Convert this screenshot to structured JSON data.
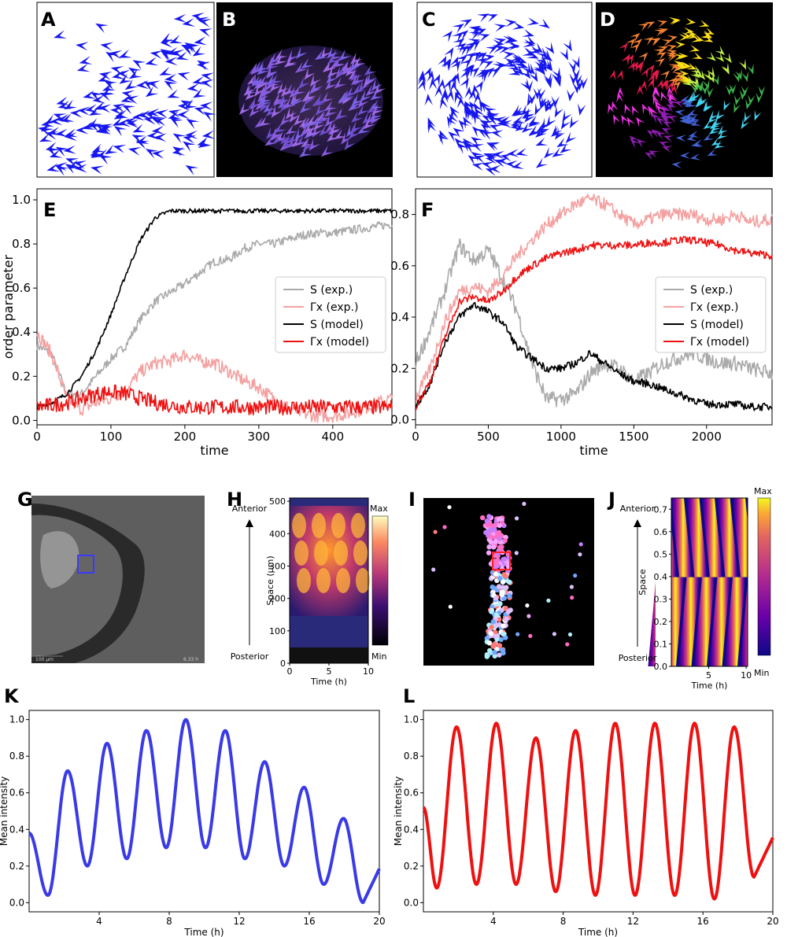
{
  "panels": {
    "A": "A",
    "B": "B",
    "C": "C",
    "D": "D",
    "E": "E",
    "F": "F",
    "G": "G",
    "H": "H",
    "I": "I",
    "J": "J",
    "K": "K",
    "L": "L"
  },
  "colors": {
    "blue": "#2222ee",
    "red": "#ee1111",
    "pink": "#f4a0a0",
    "gray": "#aaaaaa",
    "black": "#000000",
    "purple": "#7a4fd6"
  },
  "chart_data": [
    {
      "id": "E",
      "type": "line",
      "xlabel": "time",
      "ylabel": "order parameter",
      "xlim": [
        0,
        480
      ],
      "ylim": [
        -0.02,
        1.05
      ],
      "xticks": [
        "0",
        "100",
        "200",
        "300",
        "400"
      ],
      "xtick_values": [
        0,
        100,
        200,
        300,
        400
      ],
      "yticks": [
        "0.0",
        "0.2",
        "0.4",
        "0.6",
        "0.8",
        "1.0"
      ],
      "ytick_values": [
        0.0,
        0.2,
        0.4,
        0.6,
        0.8,
        1.0
      ],
      "legend": [
        "S (exp.)",
        "Γx (exp.)",
        "S (model)",
        "Γx (model)"
      ],
      "series": [
        {
          "name": "S (exp.)",
          "color": "#aaaaaa",
          "x": [
            0,
            20,
            40,
            60,
            80,
            100,
            120,
            140,
            160,
            180,
            200,
            220,
            240,
            260,
            280,
            300,
            320,
            340,
            360,
            380,
            400,
            420,
            440,
            460,
            480
          ],
          "y": [
            0.34,
            0.3,
            0.12,
            0.12,
            0.2,
            0.28,
            0.34,
            0.46,
            0.54,
            0.58,
            0.62,
            0.67,
            0.72,
            0.73,
            0.78,
            0.8,
            0.8,
            0.82,
            0.84,
            0.85,
            0.85,
            0.86,
            0.87,
            0.88,
            0.89
          ]
        },
        {
          "name": "Γx (exp.)",
          "color": "#f4a0a0",
          "x": [
            0,
            20,
            40,
            60,
            80,
            100,
            120,
            140,
            160,
            180,
            200,
            220,
            240,
            260,
            280,
            300,
            320,
            340,
            360,
            380,
            400,
            420,
            440,
            460,
            480
          ],
          "y": [
            0.4,
            0.3,
            0.1,
            0.05,
            0.08,
            0.1,
            0.14,
            0.22,
            0.26,
            0.27,
            0.3,
            0.27,
            0.26,
            0.22,
            0.18,
            0.15,
            0.1,
            0.06,
            0.03,
            0.02,
            0.02,
            0.03,
            0.05,
            0.08,
            0.1
          ]
        },
        {
          "name": "S (model)",
          "color": "#000000",
          "x": [
            0,
            20,
            40,
            60,
            80,
            100,
            120,
            140,
            160,
            180,
            200,
            220,
            240,
            260,
            280,
            300,
            320,
            340,
            360,
            380,
            400,
            420,
            440,
            460,
            480
          ],
          "y": [
            0.06,
            0.08,
            0.12,
            0.2,
            0.32,
            0.48,
            0.66,
            0.82,
            0.92,
            0.95,
            0.95,
            0.95,
            0.95,
            0.95,
            0.95,
            0.95,
            0.95,
            0.95,
            0.95,
            0.95,
            0.95,
            0.95,
            0.95,
            0.95,
            0.95
          ]
        },
        {
          "name": "Γx (model)",
          "color": "#ee1111",
          "x": [
            0,
            20,
            40,
            60,
            80,
            100,
            120,
            140,
            160,
            180,
            200,
            220,
            240,
            260,
            280,
            300,
            320,
            340,
            360,
            380,
            400,
            420,
            440,
            460,
            480
          ],
          "y": [
            0.06,
            0.07,
            0.08,
            0.1,
            0.12,
            0.13,
            0.12,
            0.1,
            0.08,
            0.07,
            0.06,
            0.06,
            0.06,
            0.06,
            0.06,
            0.06,
            0.06,
            0.06,
            0.06,
            0.06,
            0.06,
            0.06,
            0.06,
            0.06,
            0.06
          ]
        }
      ]
    },
    {
      "id": "F",
      "type": "line",
      "xlabel": "time",
      "ylabel": "",
      "xlim": [
        0,
        2450
      ],
      "ylim": [
        -0.02,
        0.9
      ],
      "xticks": [
        "0",
        "500",
        "1000",
        "1500",
        "2000"
      ],
      "xtick_values": [
        0,
        500,
        1000,
        1500,
        2000
      ],
      "yticks": [
        "0.0",
        "0.2",
        "0.4",
        "0.6",
        "0.8"
      ],
      "ytick_values": [
        0.0,
        0.2,
        0.4,
        0.6,
        0.8
      ],
      "legend": [
        "S (exp.)",
        "Γx (exp.)",
        "S (model)",
        "Γx (model)"
      ],
      "series": [
        {
          "name": "S (exp.)",
          "color": "#aaaaaa",
          "x": [
            0,
            100,
            200,
            300,
            400,
            500,
            600,
            700,
            800,
            900,
            1000,
            1100,
            1200,
            1300,
            1400,
            1500,
            1600,
            1700,
            1800,
            1900,
            2000,
            2100,
            2200,
            2300,
            2450
          ],
          "y": [
            0.22,
            0.35,
            0.5,
            0.68,
            0.62,
            0.66,
            0.55,
            0.42,
            0.22,
            0.08,
            0.08,
            0.1,
            0.18,
            0.22,
            0.2,
            0.15,
            0.18,
            0.22,
            0.24,
            0.26,
            0.24,
            0.22,
            0.22,
            0.2,
            0.18
          ]
        },
        {
          "name": "Γx (exp.)",
          "color": "#f4a0a0",
          "x": [
            0,
            100,
            200,
            300,
            400,
            500,
            600,
            700,
            800,
            900,
            1000,
            1100,
            1200,
            1300,
            1400,
            1500,
            1600,
            1700,
            1800,
            1900,
            2000,
            2100,
            2200,
            2300,
            2450
          ],
          "y": [
            0.08,
            0.2,
            0.38,
            0.5,
            0.52,
            0.5,
            0.56,
            0.64,
            0.7,
            0.76,
            0.8,
            0.84,
            0.86,
            0.84,
            0.8,
            0.76,
            0.78,
            0.8,
            0.8,
            0.8,
            0.78,
            0.78,
            0.8,
            0.77,
            0.78
          ]
        },
        {
          "name": "S (model)",
          "color": "#000000",
          "x": [
            0,
            100,
            200,
            300,
            400,
            500,
            600,
            700,
            800,
            900,
            1000,
            1100,
            1200,
            1300,
            1400,
            1500,
            1600,
            1700,
            1800,
            1900,
            2000,
            2100,
            2200,
            2300,
            2450
          ],
          "y": [
            0.05,
            0.14,
            0.3,
            0.4,
            0.45,
            0.42,
            0.38,
            0.28,
            0.24,
            0.2,
            0.2,
            0.22,
            0.26,
            0.22,
            0.18,
            0.15,
            0.14,
            0.12,
            0.1,
            0.08,
            0.06,
            0.06,
            0.06,
            0.05,
            0.05
          ]
        },
        {
          "name": "Γx (model)",
          "color": "#ee1111",
          "x": [
            0,
            100,
            200,
            300,
            400,
            500,
            600,
            700,
            800,
            900,
            1000,
            1100,
            1200,
            1300,
            1400,
            1500,
            1600,
            1700,
            1800,
            1900,
            2000,
            2100,
            2200,
            2300,
            2450
          ],
          "y": [
            0.05,
            0.15,
            0.32,
            0.46,
            0.48,
            0.46,
            0.5,
            0.56,
            0.6,
            0.63,
            0.65,
            0.66,
            0.68,
            0.68,
            0.68,
            0.68,
            0.69,
            0.69,
            0.7,
            0.7,
            0.69,
            0.68,
            0.66,
            0.65,
            0.64
          ]
        }
      ]
    },
    {
      "id": "H",
      "type": "heatmap",
      "xlabel": "Time (h)",
      "ylabel": "Space (μm)",
      "xticks": [
        "0",
        "5",
        "10"
      ],
      "yticks": [
        "0",
        "100",
        "200",
        "300",
        "400",
        "500"
      ],
      "colorbar": [
        "Max",
        "Min"
      ],
      "arrow_top": "Anterior",
      "arrow_bottom": "Posterior"
    },
    {
      "id": "J",
      "type": "heatmap",
      "xlabel": "Time (h)",
      "ylabel": "Space",
      "xticks": [
        "5",
        "10"
      ],
      "yticks": [
        "0.0",
        "0.1",
        "0.2",
        "0.3",
        "0.4",
        "0.5",
        "0.6",
        "0.7"
      ],
      "colorbar": [
        "Max",
        "Min"
      ],
      "arrow_top": "Anterior",
      "arrow_bottom": "Posterior"
    },
    {
      "id": "K",
      "type": "line",
      "xlabel": "Time (h)",
      "ylabel": "Mean intensity",
      "xlim": [
        0,
        20
      ],
      "ylim": [
        -0.05,
        1.05
      ],
      "xticks": [
        "4",
        "8",
        "12",
        "16",
        "20"
      ],
      "xtick_values": [
        4,
        8,
        12,
        16,
        20
      ],
      "yticks": [
        "0.0",
        "0.2",
        "0.4",
        "0.6",
        "0.8",
        "1.0"
      ],
      "ytick_values": [
        0.0,
        0.2,
        0.4,
        0.6,
        0.8,
        1.0
      ],
      "series": [
        {
          "name": "Mean intensity",
          "color": "#3a3ae6",
          "period": 2.25,
          "first_peak": 2.2,
          "peaks": [
            0.72,
            0.87,
            0.94,
            1.0,
            0.94,
            0.77,
            0.63,
            0.46
          ],
          "troughs": [
            0.04,
            0.2,
            0.24,
            0.3,
            0.3,
            0.24,
            0.2,
            0.1,
            0.0
          ],
          "start": 0.38
        }
      ]
    },
    {
      "id": "L",
      "type": "line",
      "xlabel": "Time (h)",
      "ylabel": "Mean intensity",
      "xlim": [
        0,
        20
      ],
      "ylim": [
        -0.05,
        1.05
      ],
      "xticks": [
        "4",
        "8",
        "12",
        "16",
        "20"
      ],
      "xtick_values": [
        4,
        8,
        12,
        16,
        20
      ],
      "yticks": [
        "0.0",
        "0.2",
        "0.4",
        "0.6",
        "0.8",
        "1.0"
      ],
      "ytick_values": [
        0.0,
        0.2,
        0.4,
        0.6,
        0.8,
        1.0
      ],
      "series": [
        {
          "name": "Mean intensity",
          "color": "#ee1111",
          "period": 2.27,
          "first_peak": 1.9,
          "peaks": [
            0.96,
            0.98,
            0.9,
            0.94,
            0.98,
            0.98,
            0.98,
            0.96
          ],
          "troughs": [
            0.08,
            0.1,
            0.1,
            0.06,
            0.04,
            0.04,
            0.04,
            0.02,
            0.14
          ],
          "start": 0.52
        }
      ]
    }
  ],
  "micro_G": {
    "scale": "100 μm",
    "timestamp": "6.33 h"
  }
}
